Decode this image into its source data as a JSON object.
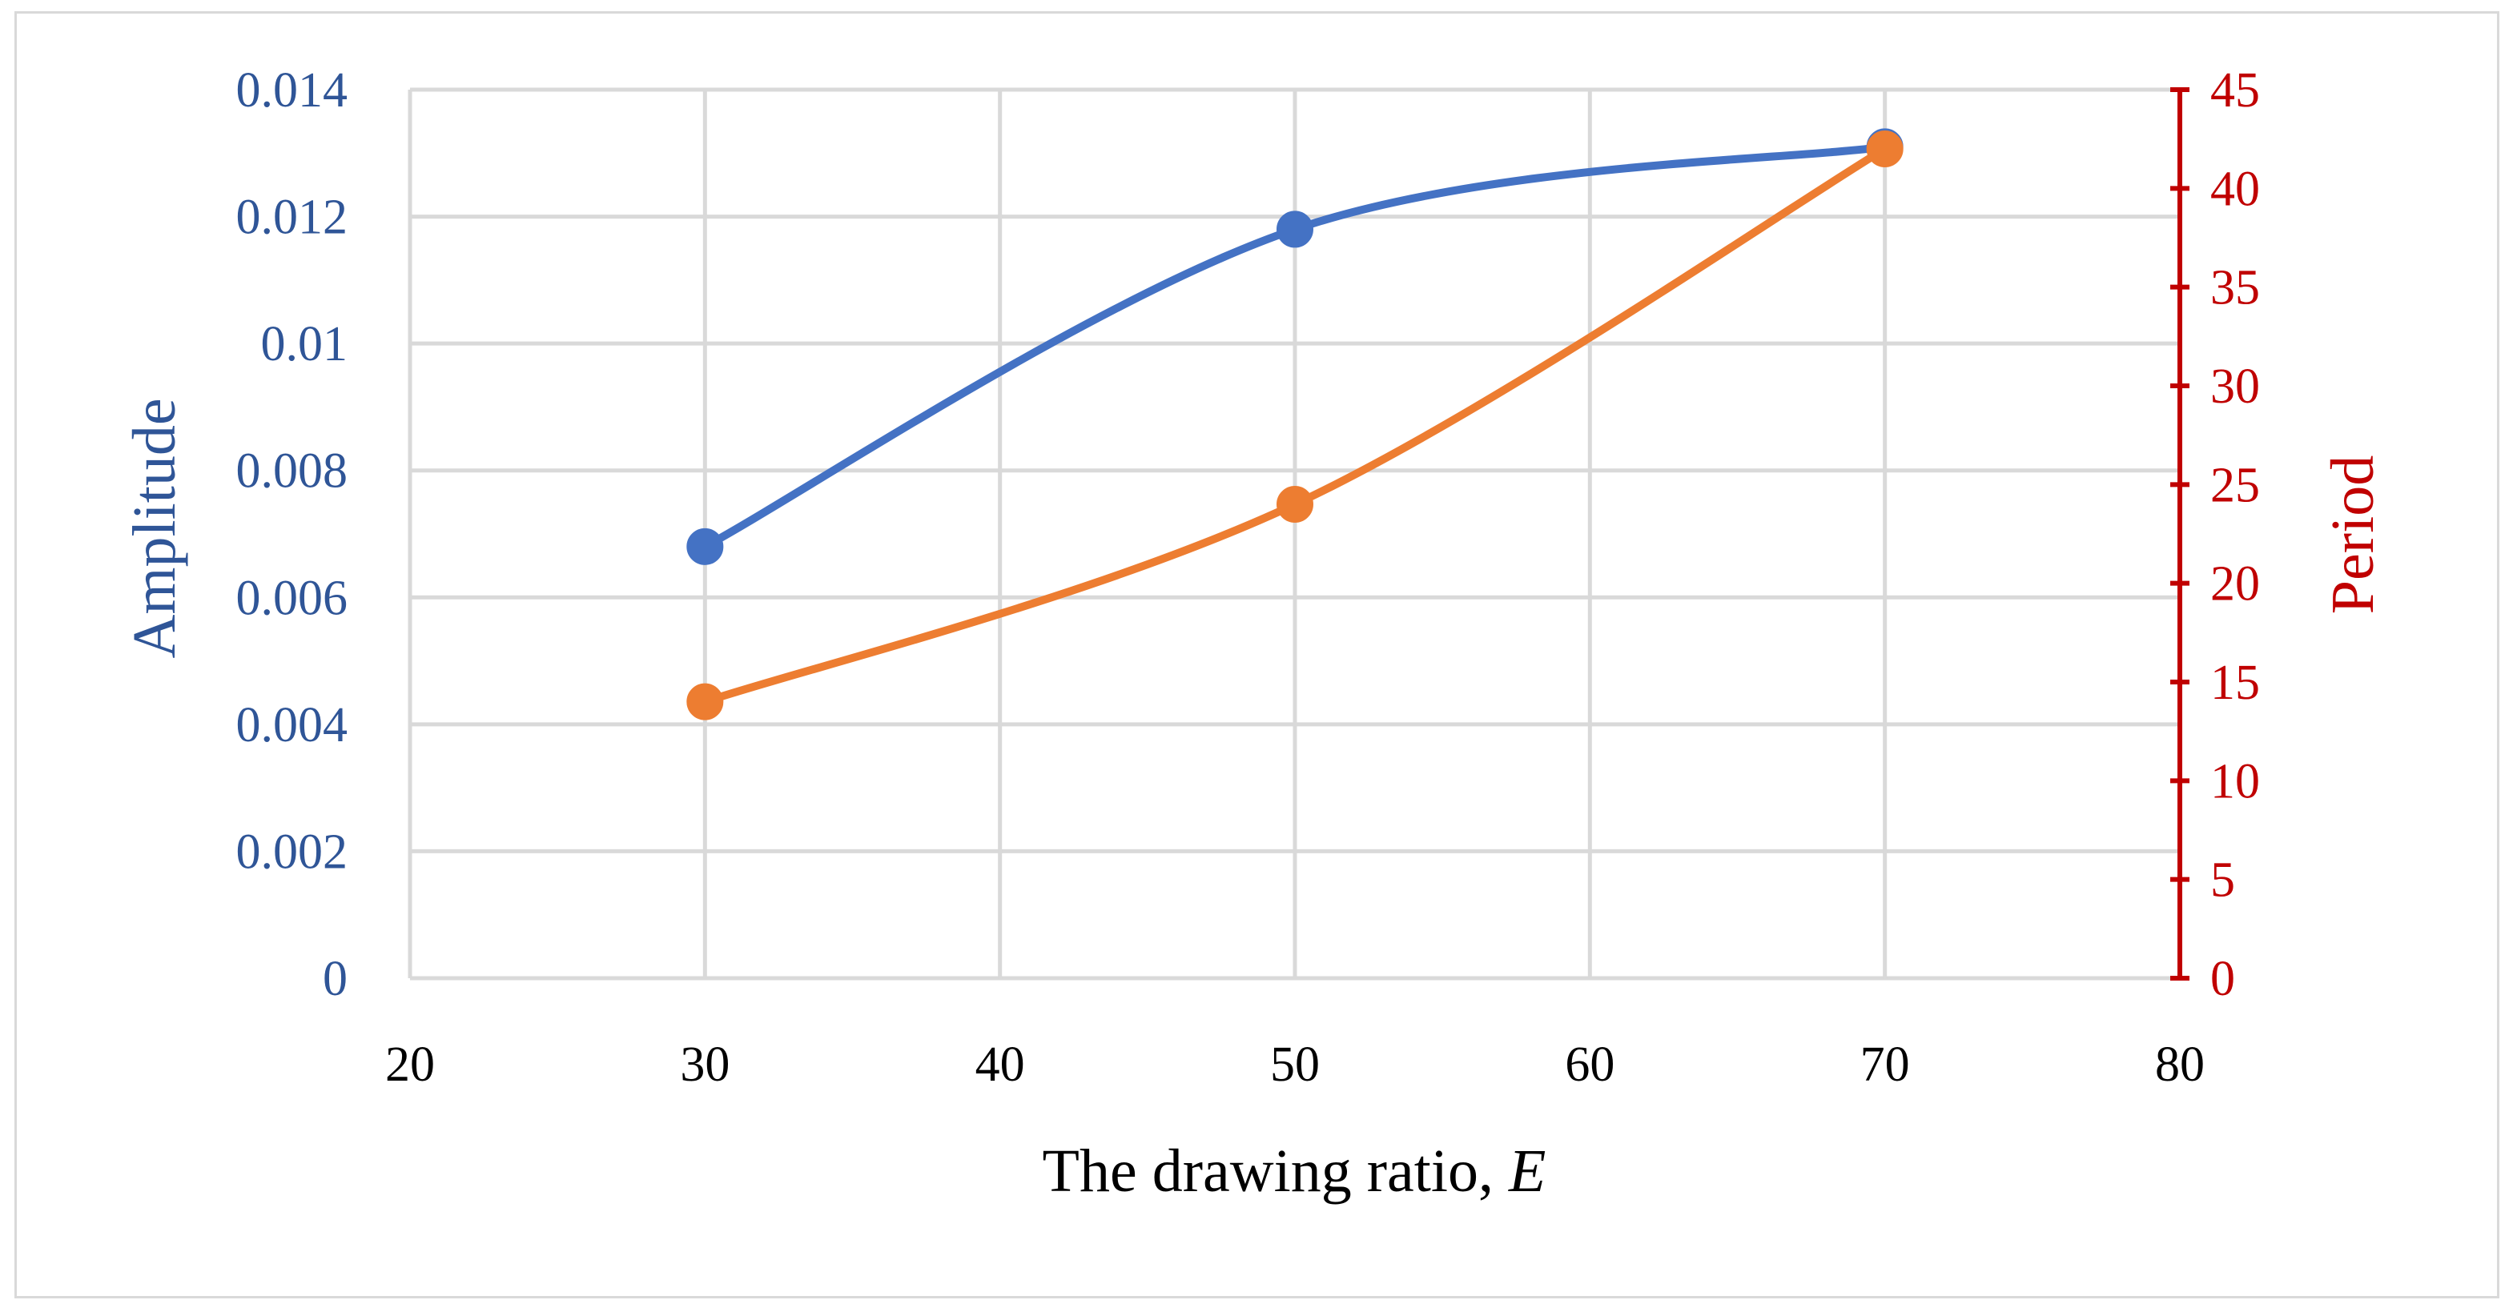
{
  "chart_data": {
    "type": "line",
    "x": [
      30,
      50,
      70
    ],
    "xlim": [
      20,
      80
    ],
    "x_ticks": [
      "20",
      "30",
      "40",
      "50",
      "60",
      "70",
      "80"
    ],
    "xlabel": "The drawing ratio, ",
    "xlabel_italic": "E",
    "ylabel_left": "Amplitude",
    "ylim_left": [
      0,
      0.014
    ],
    "y_ticks_left": [
      "0",
      "0.002",
      "0.004",
      "0.006",
      "0.008",
      "0.01",
      "0.012",
      "0.014"
    ],
    "ylabel_right": "Period",
    "ylim_right": [
      0,
      45
    ],
    "y_ticks_right": [
      "0",
      "5",
      "10",
      "15",
      "20",
      "25",
      "30",
      "35",
      "40",
      "45"
    ],
    "grid": true,
    "series": [
      {
        "axis": "left",
        "color": "#4472c4",
        "values": [
          0.0068,
          0.0118,
          0.0131
        ]
      },
      {
        "axis": "right",
        "color": "#ed7d31",
        "values": [
          14,
          24,
          42
        ]
      }
    ],
    "left_axis_color": "#2f5597",
    "right_axis_color": "#c00000",
    "grid_color": "#d9d9d9"
  }
}
